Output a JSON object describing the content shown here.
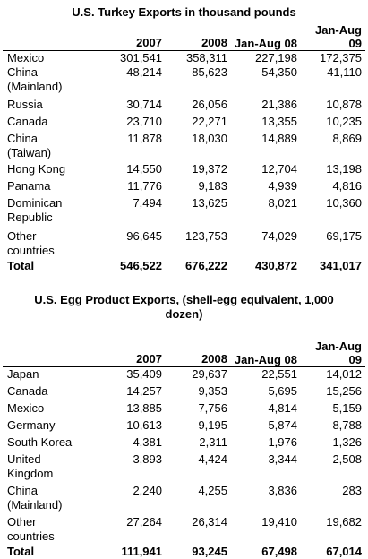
{
  "turkey": {
    "title": "U.S. Turkey Exports in thousand pounds",
    "headers": [
      "2007",
      "2008",
      "Jan-Aug 08",
      "Jan-Aug 09"
    ],
    "rows": [
      {
        "country": "Mexico",
        "v2007": "301,541",
        "v2008": "358,311",
        "ja08": "227,198",
        "ja09": "172,375"
      },
      {
        "country": "China (Mainland)",
        "v2007": "48,214",
        "v2008": "85,623",
        "ja08": "54,350",
        "ja09": "41,110"
      },
      {
        "country": "Russia",
        "v2007": "30,714",
        "v2008": "26,056",
        "ja08": "21,386",
        "ja09": "10,878"
      },
      {
        "country": "Canada",
        "v2007": "23,710",
        "v2008": "22,271",
        "ja08": "13,355",
        "ja09": "10,235"
      },
      {
        "country": "China (Taiwan)",
        "v2007": "11,878",
        "v2008": "18,030",
        "ja08": "14,889",
        "ja09": "8,869"
      },
      {
        "country": "Hong Kong",
        "v2007": "14,550",
        "v2008": "19,372",
        "ja08": "12,704",
        "ja09": "13,198"
      },
      {
        "country": "Panama",
        "v2007": "11,776",
        "v2008": "9,183",
        "ja08": "4,939",
        "ja09": "4,816"
      },
      {
        "country": "Dominican Republic",
        "v2007": "7,494",
        "v2008": "13,625",
        "ja08": "8,021",
        "ja09": "10,360"
      },
      {
        "country": "Other countries",
        "v2007": "96,645",
        "v2008": "123,753",
        "ja08": "74,029",
        "ja09": "69,175"
      }
    ],
    "total": {
      "country": "Total",
      "v2007": "546,522",
      "v2008": "676,222",
      "ja08": "430,872",
      "ja09": "341,017"
    }
  },
  "egg": {
    "title": "U.S. Egg Product Exports, (shell-egg equivalent, 1,000 dozen)",
    "headers": [
      "2007",
      "2008",
      "Jan-Aug 08",
      "Jan-Aug 09"
    ],
    "rows": [
      {
        "country": "Japan",
        "v2007": "35,409",
        "v2008": "29,637",
        "ja08": "22,551",
        "ja09": "14,012"
      },
      {
        "country": "Canada",
        "v2007": "14,257",
        "v2008": "9,353",
        "ja08": "5,695",
        "ja09": "15,256"
      },
      {
        "country": "Mexico",
        "v2007": "13,885",
        "v2008": "7,756",
        "ja08": "4,814",
        "ja09": "5,159"
      },
      {
        "country": "Germany",
        "v2007": "10,613",
        "v2008": "9,195",
        "ja08": "5,874",
        "ja09": "8,788"
      },
      {
        "country": "South Korea",
        "v2007": "4,381",
        "v2008": "2,311",
        "ja08": "1,976",
        "ja09": "1,326"
      },
      {
        "country": "United Kingdom",
        "v2007": "3,893",
        "v2008": "4,424",
        "ja08": "3,344",
        "ja09": "2,508"
      },
      {
        "country": "China (Mainland)",
        "v2007": "2,240",
        "v2008": "4,255",
        "ja08": "3,836",
        "ja09": "283"
      },
      {
        "country": "Other countries",
        "v2007": "27,264",
        "v2008": "26,314",
        "ja08": "19,410",
        "ja09": "19,682"
      }
    ],
    "total": {
      "country": "Total",
      "v2007": "111,941",
      "v2008": "93,245",
      "ja08": "67,498",
      "ja09": "67,014"
    }
  }
}
